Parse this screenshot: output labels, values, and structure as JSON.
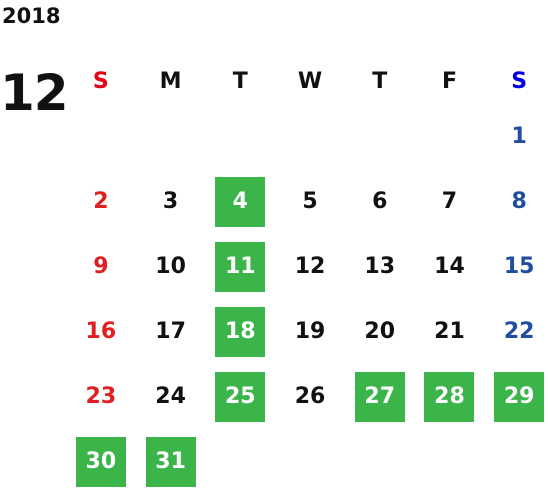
{
  "calendar": {
    "year": "2018",
    "month": "12",
    "weekdays": [
      "S",
      "M",
      "T",
      "W",
      "T",
      "F",
      "S"
    ],
    "weeks": [
      [
        "",
        "",
        "",
        "",
        "",
        "",
        "1"
      ],
      [
        "2",
        "3",
        "4",
        "5",
        "6",
        "7",
        "8"
      ],
      [
        "9",
        "10",
        "11",
        "12",
        "13",
        "14",
        "15"
      ],
      [
        "16",
        "17",
        "18",
        "19",
        "20",
        "21",
        "22"
      ],
      [
        "23",
        "24",
        "25",
        "26",
        "27",
        "28",
        "29"
      ],
      [
        "30",
        "31",
        "",
        "",
        "",
        "",
        ""
      ]
    ],
    "highlighted_days": [
      "4",
      "11",
      "18",
      "25",
      "27",
      "28",
      "29",
      "30",
      "31"
    ],
    "colors": {
      "highlight": "#3bb54a",
      "sunday": "#e02020",
      "saturday": "#1f4ea0",
      "header_sunday": "#e60012",
      "header_saturday": "#0000e6",
      "text": "#111111"
    }
  }
}
